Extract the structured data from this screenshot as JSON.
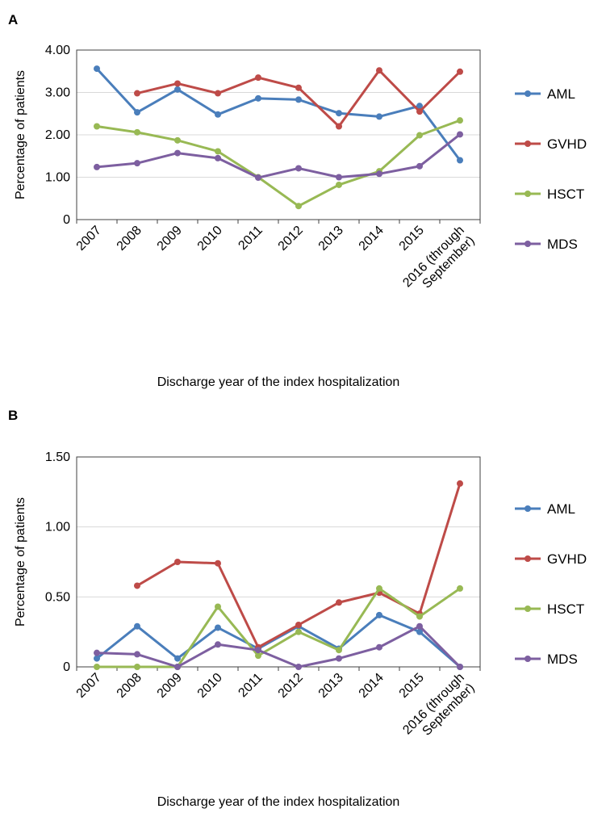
{
  "chart_data": [
    {
      "panel_label": "A",
      "type": "line",
      "title": "",
      "xlabel": "Discharge year of the index hospitalization",
      "ylabel": "Percentage of patients",
      "ylim": [
        0,
        4
      ],
      "y_ticks": [
        "0",
        "1.00",
        "2.00",
        "3.00",
        "4.00"
      ],
      "y_tick_values": [
        0,
        1,
        2,
        3,
        4
      ],
      "grid": true,
      "legend_position": "right",
      "categories": [
        "2007",
        "2008",
        "2009",
        "2010",
        "2011",
        "2012",
        "2013",
        "2014",
        "2015",
        "2016 (through September)"
      ],
      "category_lines": [
        [
          "2007"
        ],
        [
          "2008"
        ],
        [
          "2009"
        ],
        [
          "2010"
        ],
        [
          "2011"
        ],
        [
          "2012"
        ],
        [
          "2013"
        ],
        [
          "2014"
        ],
        [
          "2015"
        ],
        [
          "2016 (through",
          "September)"
        ]
      ],
      "series": [
        {
          "name": "AML",
          "color": "#4a7ebb",
          "values": [
            3.56,
            2.53,
            3.07,
            2.48,
            2.86,
            2.83,
            2.51,
            2.43,
            2.68,
            1.4
          ]
        },
        {
          "name": "GVHD",
          "color": "#be4b48",
          "values": [
            null,
            2.98,
            3.21,
            2.98,
            3.35,
            3.11,
            2.2,
            3.52,
            2.55,
            3.49
          ]
        },
        {
          "name": "HSCT",
          "color": "#98b954",
          "values": [
            2.2,
            2.06,
            1.87,
            1.61,
            1.0,
            0.32,
            0.82,
            1.14,
            1.99,
            2.34
          ]
        },
        {
          "name": "MDS",
          "color": "#7d5fa0",
          "values": [
            1.24,
            1.33,
            1.57,
            1.45,
            0.99,
            1.21,
            1.0,
            1.08,
            1.26,
            2.01
          ]
        }
      ]
    },
    {
      "panel_label": "B",
      "type": "line",
      "title": "",
      "xlabel": "Discharge year of the index hospitalization",
      "ylabel": "Percentage of patients",
      "ylim": [
        0,
        1.5
      ],
      "y_ticks": [
        "0",
        "0.50",
        "1.00",
        "1.50"
      ],
      "y_tick_values": [
        0,
        0.5,
        1.0,
        1.5
      ],
      "grid": true,
      "legend_position": "right",
      "categories": [
        "2007",
        "2008",
        "2009",
        "2010",
        "2011",
        "2012",
        "2013",
        "2014",
        "2015",
        "2016 (through September)"
      ],
      "category_lines": [
        [
          "2007"
        ],
        [
          "2008"
        ],
        [
          "2009"
        ],
        [
          "2010"
        ],
        [
          "2011"
        ],
        [
          "2012"
        ],
        [
          "2013"
        ],
        [
          "2014"
        ],
        [
          "2015"
        ],
        [
          "2016 (through",
          "September)"
        ]
      ],
      "series": [
        {
          "name": "AML",
          "color": "#4a7ebb",
          "values": [
            0.06,
            0.29,
            0.06,
            0.28,
            0.13,
            0.29,
            0.13,
            0.37,
            0.25,
            0.0
          ]
        },
        {
          "name": "GVHD",
          "color": "#be4b48",
          "values": [
            null,
            0.58,
            0.75,
            0.74,
            0.14,
            0.3,
            0.46,
            0.53,
            0.38,
            1.31
          ]
        },
        {
          "name": "HSCT",
          "color": "#98b954",
          "values": [
            0.0,
            0.0,
            0.0,
            0.43,
            0.08,
            0.25,
            0.12,
            0.56,
            0.36,
            0.56
          ]
        },
        {
          "name": "MDS",
          "color": "#7d5fa0",
          "values": [
            0.1,
            0.09,
            0.0,
            0.16,
            0.12,
            0.0,
            0.06,
            0.14,
            0.29,
            0.0
          ]
        }
      ]
    }
  ]
}
